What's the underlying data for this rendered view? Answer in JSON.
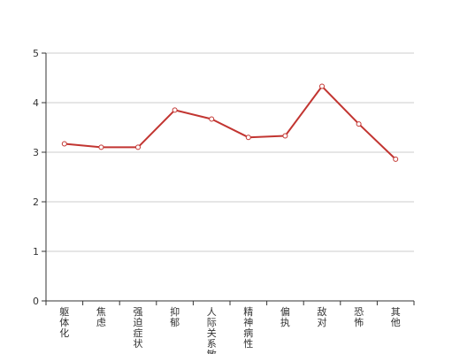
{
  "chart_data": {
    "type": "line",
    "categories": [
      "躯体化",
      "焦虑",
      "强迫症状",
      "抑郁",
      "人际关系敏感",
      "精神病性",
      "偏执",
      "敌对",
      "恐怖",
      "其他"
    ],
    "series": [
      {
        "values": [
          3.17,
          3.1,
          3.1,
          3.85,
          3.67,
          3.3,
          3.33,
          4.33,
          3.57,
          2.86
        ]
      }
    ],
    "title": "",
    "xlabel": "",
    "ylabel": "",
    "ylim": [
      0,
      5
    ],
    "yticks": [
      "0",
      "1",
      "2",
      "3",
      "4",
      "5"
    ],
    "grid": true,
    "line_color": "#c23531",
    "marker_fill": "#ffffff"
  }
}
